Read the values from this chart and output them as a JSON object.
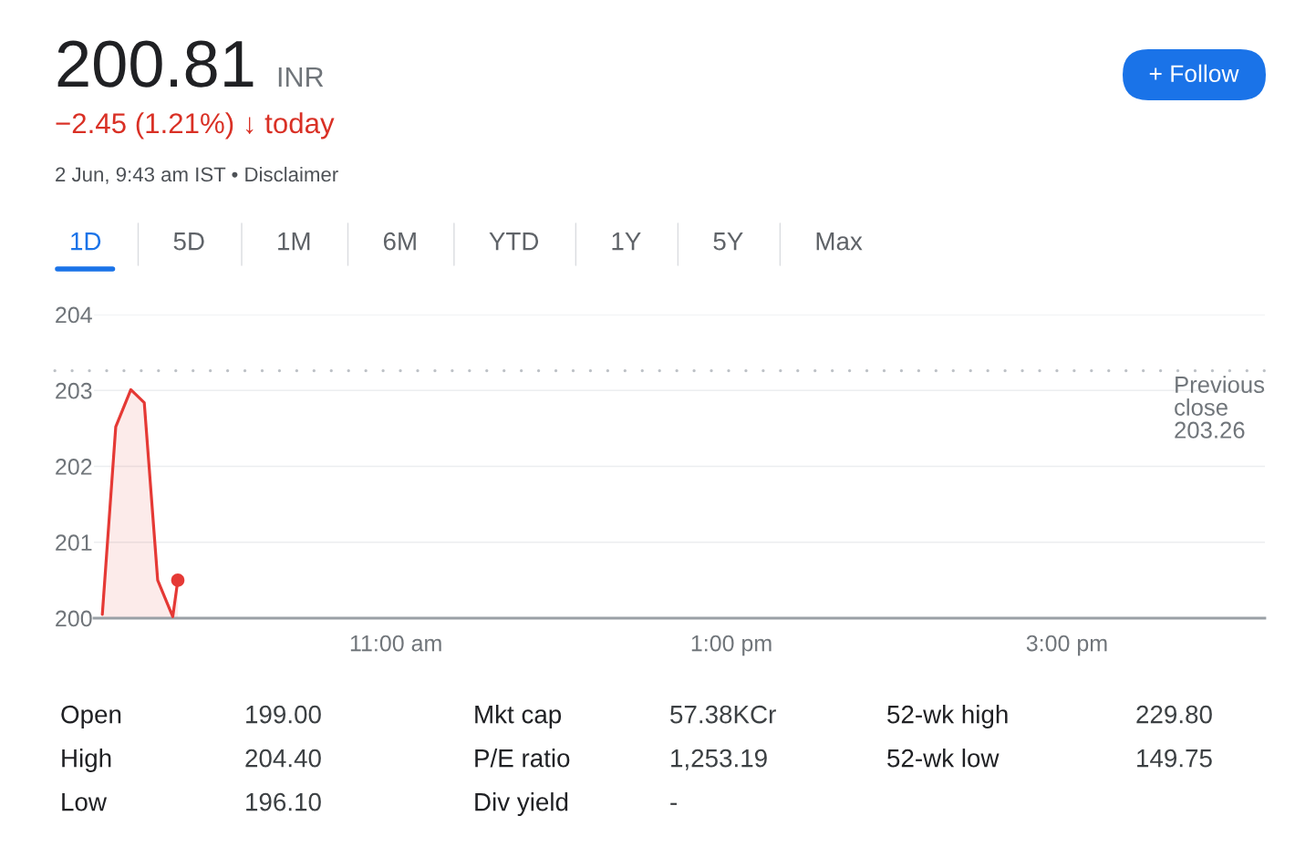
{
  "chart_data": {
    "type": "area",
    "title": "200.81 INR",
    "subtitle": "−2.45 (1.21%) ↓ today",
    "annotations": [
      "2 Jun, 9:43 am IST • Disclaimer",
      "1D",
      "5D",
      "1M",
      "6M",
      "YTD",
      "1Y",
      "5Y",
      "Max",
      "+ Follow",
      "Open",
      "199.00",
      "Mkt cap",
      "57.38KCr",
      "52-wk high",
      "229.80",
      "High",
      "204.40",
      "P/E ratio",
      "1,253.19",
      "52-wk low",
      "149.75",
      "Low",
      "196.10",
      "Div yield",
      "-"
    ],
    "x": [
      9.25,
      9.33,
      9.42,
      9.5,
      9.58,
      9.67,
      9.7
    ],
    "series": [
      {
        "color": "#e53935",
        "values": [
          200.05,
          202.52,
          203.01,
          202.84,
          200.5,
          200.02,
          200.5
        ]
      },
      {
        "type": "scatter",
        "color": "#e53935",
        "x": [
          9.7
        ],
        "values": [
          200.5
        ]
      }
    ],
    "xlim": [
      9.2,
      16.18
    ],
    "xticks": [
      {
        "value": 11,
        "label": "11:00 am"
      },
      {
        "value": 13,
        "label": "1:00 pm"
      },
      {
        "value": 15,
        "label": "3:00 pm"
      }
    ],
    "ylim": [
      200,
      204
    ],
    "yticks": [
      200,
      201,
      202,
      203,
      204
    ],
    "grid": "y",
    "ref_lines": [
      {
        "axis": "y",
        "value": 203.26,
        "label": "Previous\nclose\n203.26",
        "color": "#bdc1c6",
        "line_style": "dotted"
      }
    ]
  }
}
